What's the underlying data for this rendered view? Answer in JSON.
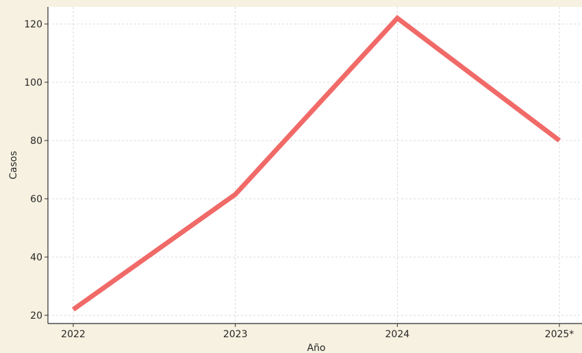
{
  "chart_data": {
    "type": "line",
    "x": [
      "2022",
      "2023",
      "2024",
      "2025*"
    ],
    "series": [
      {
        "values": [
          22,
          61.5,
          122,
          80
        ],
        "color": "#f06a68"
      }
    ],
    "xlabel": "Año",
    "ylabel": "Casos",
    "ylim": [
      17,
      127
    ],
    "yticks": [
      20,
      40,
      60,
      80,
      100,
      120
    ],
    "grid": true
  }
}
